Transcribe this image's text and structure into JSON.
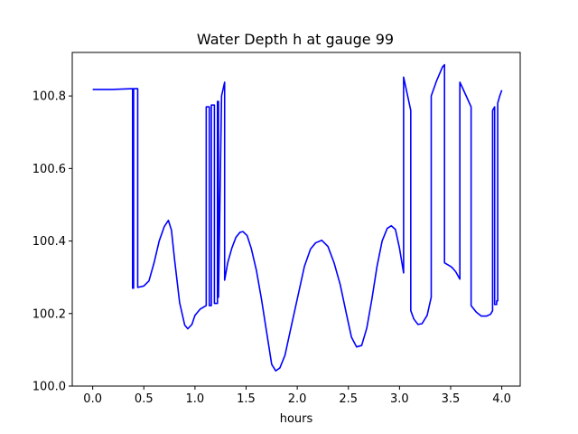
{
  "chart_data": {
    "type": "line",
    "title": "Water Depth h at gauge 99",
    "xlabel": "hours",
    "ylabel": "",
    "xlim": [
      -0.2,
      4.18
    ],
    "ylim": [
      100.0,
      100.92
    ],
    "x_ticks": [
      0.0,
      0.5,
      1.0,
      1.5,
      2.0,
      2.5,
      3.0,
      3.5,
      4.0
    ],
    "x_tick_labels": [
      "0.0",
      "0.5",
      "1.0",
      "1.5",
      "2.0",
      "2.5",
      "3.0",
      "3.5",
      "4.0"
    ],
    "y_ticks": [
      100.0,
      100.2,
      100.4,
      100.6,
      100.8
    ],
    "y_tick_labels": [
      "100.0",
      "100.2",
      "100.4",
      "100.6",
      "100.8"
    ],
    "grid": false,
    "legend": "none",
    "series": [
      {
        "color": "#0000ff",
        "x": [
          0.0,
          0.2,
          0.39,
          0.39,
          0.4,
          0.4,
          0.42,
          0.42,
          0.44,
          0.44,
          0.5,
          0.55,
          0.6,
          0.65,
          0.7,
          0.74,
          0.77,
          0.8,
          0.85,
          0.9,
          0.93,
          0.97,
          1.0,
          1.05,
          1.11,
          1.11,
          1.14,
          1.14,
          1.16,
          1.16,
          1.19,
          1.19,
          1.22,
          1.22,
          1.23,
          1.23,
          1.26,
          1.29,
          1.29,
          1.32,
          1.36,
          1.4,
          1.44,
          1.47,
          1.51,
          1.55,
          1.6,
          1.65,
          1.7,
          1.75,
          1.79,
          1.83,
          1.88,
          1.93,
          2.0,
          2.07,
          2.13,
          2.18,
          2.24,
          2.3,
          2.36,
          2.42,
          2.48,
          2.53,
          2.58,
          2.63,
          2.68,
          2.73,
          2.78,
          2.83,
          2.88,
          2.92,
          2.96,
          3.0,
          3.04,
          3.04,
          3.11,
          3.11,
          3.14,
          3.18,
          3.22,
          3.27,
          3.31,
          3.31,
          3.36,
          3.42,
          3.44,
          3.44,
          3.5,
          3.52,
          3.55,
          3.59,
          3.59,
          3.62,
          3.66,
          3.7,
          3.7,
          3.75,
          3.8,
          3.85,
          3.89,
          3.91,
          3.91,
          3.93,
          3.93,
          3.95,
          3.95,
          3.96,
          3.96,
          3.98,
          4.0
        ],
        "y": [
          100.818,
          100.818,
          100.82,
          100.27,
          100.27,
          100.82,
          100.82,
          100.82,
          100.82,
          100.272,
          100.276,
          100.29,
          100.34,
          100.4,
          100.44,
          100.457,
          100.43,
          100.35,
          100.23,
          100.168,
          100.158,
          100.17,
          100.195,
          100.212,
          100.222,
          100.77,
          100.77,
          100.222,
          100.222,
          100.775,
          100.775,
          100.228,
          100.228,
          100.785,
          100.785,
          100.245,
          100.8,
          100.838,
          100.292,
          100.34,
          100.38,
          100.41,
          100.424,
          100.426,
          100.415,
          100.38,
          100.32,
          100.24,
          100.15,
          100.06,
          100.042,
          100.05,
          100.085,
          100.15,
          100.24,
          100.33,
          100.378,
          100.395,
          100.402,
          100.385,
          100.34,
          100.28,
          100.2,
          100.135,
          100.108,
          100.112,
          100.16,
          100.24,
          100.33,
          100.4,
          100.435,
          100.442,
          100.432,
          100.38,
          100.312,
          100.852,
          100.76,
          100.208,
          100.185,
          100.17,
          100.172,
          100.195,
          100.245,
          100.8,
          100.84,
          100.88,
          100.886,
          100.34,
          100.33,
          100.325,
          100.315,
          100.295,
          100.838,
          100.82,
          100.795,
          100.77,
          100.222,
          100.204,
          100.193,
          100.193,
          100.198,
          100.208,
          100.76,
          100.77,
          100.225,
          100.225,
          100.235,
          100.235,
          100.78,
          100.8,
          100.816
        ]
      }
    ]
  }
}
